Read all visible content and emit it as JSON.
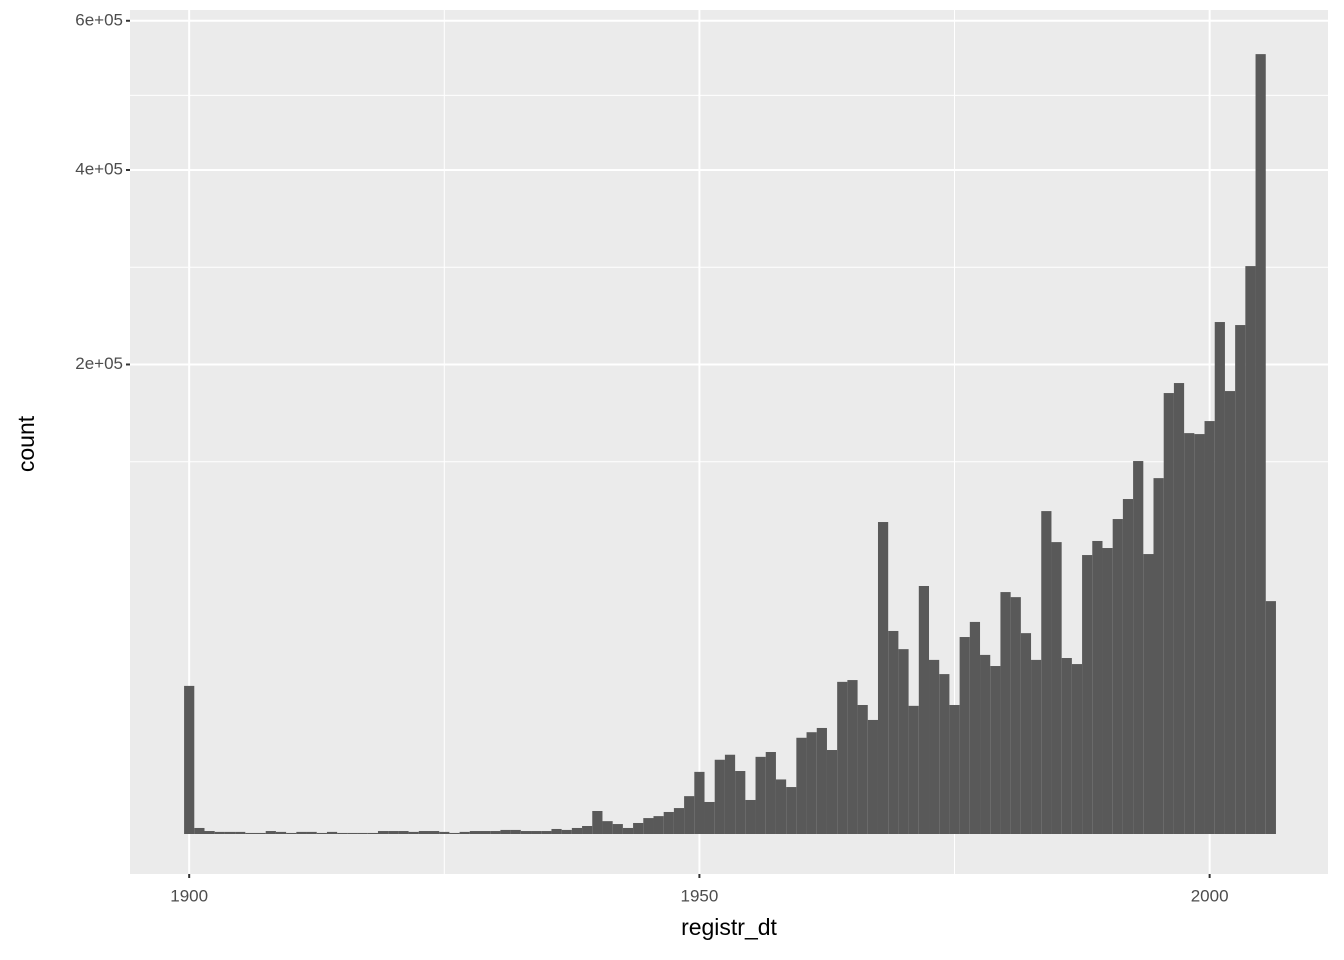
{
  "chart_data": {
    "type": "histogram",
    "y_scale": "sqrt",
    "grid": true,
    "color": "#595959",
    "x_label": "registr_dt",
    "y_label": "count",
    "xlim": [
      1894.2,
      2011.6
    ],
    "xticks": [
      1900,
      1950,
      2000
    ],
    "ylim": [
      0,
      616000
    ],
    "yticks": [
      {
        "value": 200000,
        "label": "2e+05"
      },
      {
        "value": 400000,
        "label": "4e+05"
      },
      {
        "value": 600000,
        "label": "6e+05"
      }
    ],
    "bins": [
      1899.5,
      1900.5,
      1901.5,
      1902.5,
      1903.5,
      1904.5,
      1905.5,
      1906.5,
      1907.5,
      1908.5,
      1909.5,
      1910.5,
      1911.5,
      1912.5,
      1913.5,
      1914.5,
      1915.5,
      1916.5,
      1917.5,
      1918.5,
      1919.5,
      1920.5,
      1921.5,
      1922.5,
      1923.5,
      1924.5,
      1925.5,
      1926.5,
      1927.5,
      1928.5,
      1929.5,
      1930.5,
      1931.5,
      1932.5,
      1933.5,
      1934.5,
      1935.5,
      1936.5,
      1937.5,
      1938.5,
      1939.5,
      1940.5,
      1941.5,
      1942.5,
      1943.5,
      1944.5,
      1945.5,
      1946.5,
      1947.5,
      1948.5,
      1949.5,
      1950.5,
      1951.5,
      1952.5,
      1953.5,
      1954.5,
      1955.5,
      1956.5,
      1957.5,
      1958.5,
      1959.5,
      1960.5,
      1961.5,
      1962.5,
      1963.5,
      1964.5,
      1965.5,
      1966.5,
      1967.5,
      1968.5,
      1969.5,
      1970.5,
      1971.5,
      1972.5,
      1973.5,
      1974.5,
      1975.5,
      1976.5,
      1977.5,
      1978.5,
      1979.5,
      1980.5,
      1981.5,
      1982.5,
      1983.5,
      1984.5,
      1985.5,
      1986.5,
      1987.5,
      1988.5,
      1989.5,
      1990.5,
      1991.5,
      1992.5,
      1993.5,
      1994.5,
      1995.5,
      1996.5,
      1997.5,
      1998.5,
      1999.5,
      2000.5,
      2001.5,
      2002.5,
      2003.5,
      2004.5,
      2005.5,
      2006.5
    ],
    "values": [
      19900,
      33,
      8,
      4,
      4,
      4,
      1,
      1,
      8,
      4,
      1,
      4,
      4,
      1,
      4,
      1,
      1,
      1,
      1,
      8,
      8,
      8,
      4,
      8,
      8,
      4,
      1,
      4,
      8,
      8,
      8,
      15,
      15,
      8,
      8,
      8,
      23,
      15,
      33,
      58,
      480,
      150,
      90,
      33,
      110,
      230,
      290,
      440,
      610,
      1300,
      3500,
      930,
      5000,
      5700,
      3600,
      1050,
      5400,
      6100,
      2700,
      2000,
      8400,
      9400,
      10200,
      6400,
      21000,
      21500,
      15100,
      11800,
      88300,
      37400,
      31000,
      14900,
      55800,
      27500,
      23200,
      15100,
      35200,
      40800,
      29100,
      25600,
      53100,
      50900,
      36600,
      27500,
      94600,
      77300,
      28100,
      26200,
      70600,
      77900,
      74200,
      90000,
      101800,
      126200,
      71100,
      114900,
      176400,
      184500,
      145800,
      145100,
      154700,
      237800,
      178000,
      235000,
      292600,
      551800,
      49200
    ]
  }
}
